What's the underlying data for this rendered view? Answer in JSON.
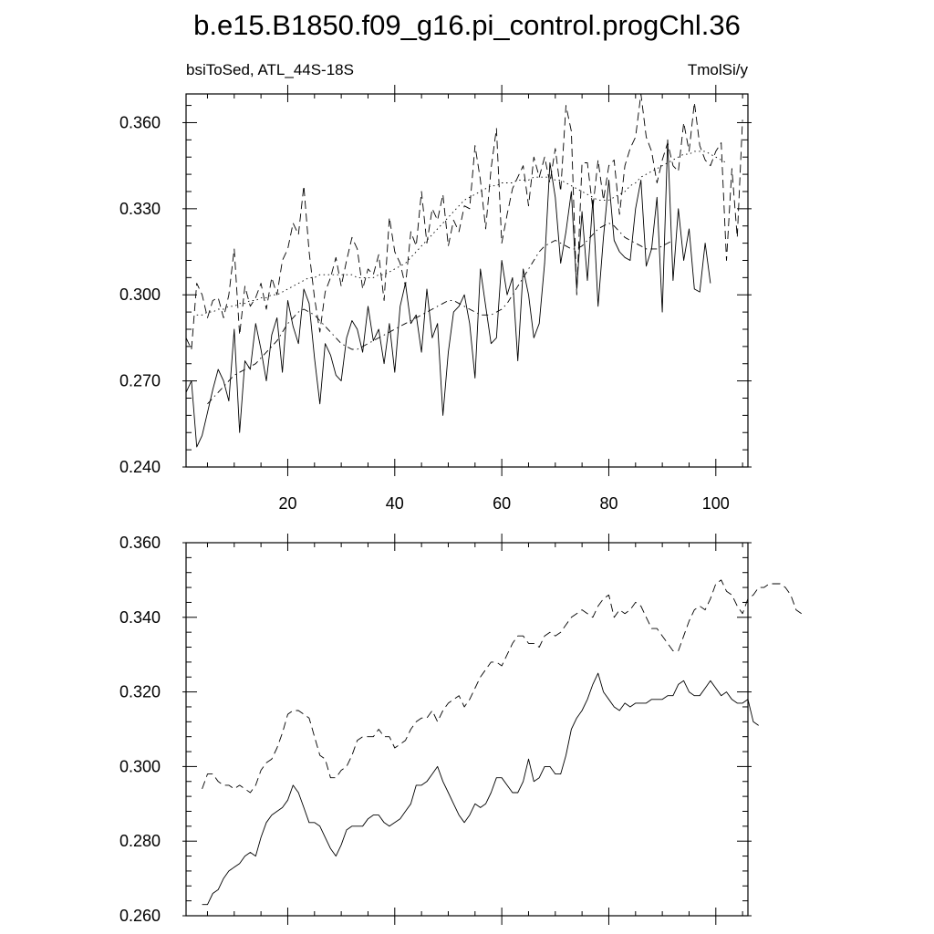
{
  "title": "b.e15.B1850.f09_g16.pi_control.progChl.36",
  "top_panel": {
    "left_label": "bsiToSed, ATL_44S-18S",
    "right_label": "TmolSi/y"
  },
  "chart_data": [
    {
      "type": "line",
      "title": "b.e15.B1850.f09_g16.pi_control.progChl.36",
      "left_label": "bsiToSed, ATL_44S-18S",
      "units": "TmolSi/y",
      "xlim": [
        1,
        106
      ],
      "ylim": [
        0.24,
        0.37
      ],
      "xticks": [
        20,
        40,
        60,
        80,
        100
      ],
      "xtick_labels": [
        "20",
        "40",
        "60",
        "80",
        "100"
      ],
      "yticks": [
        0.24,
        0.27,
        0.3,
        0.33,
        0.36
      ],
      "ytick_labels": [
        "0.240",
        "0.270",
        "0.300",
        "0.330",
        "0.360"
      ],
      "series": [
        {
          "dash": "solid",
          "x_start": 1,
          "values": [
            0.266,
            0.27,
            0.247,
            0.251,
            0.259,
            0.267,
            0.274,
            0.27,
            0.263,
            0.288,
            0.252,
            0.277,
            0.274,
            0.29,
            0.281,
            0.27,
            0.286,
            0.292,
            0.273,
            0.298,
            0.289,
            0.283,
            0.302,
            0.297,
            0.278,
            0.262,
            0.283,
            0.279,
            0.272,
            0.27,
            0.285,
            0.291,
            0.288,
            0.28,
            0.296,
            0.284,
            0.288,
            0.276,
            0.29,
            0.273,
            0.296,
            0.304,
            0.29,
            0.293,
            0.28,
            0.302,
            0.285,
            0.29,
            0.258,
            0.28,
            0.294,
            0.296,
            0.3,
            0.29,
            0.271,
            0.309,
            0.296,
            0.283,
            0.285,
            0.312,
            0.3,
            0.306,
            0.277,
            0.309,
            0.3,
            0.285,
            0.29,
            0.311,
            0.346,
            0.334,
            0.311,
            0.322,
            0.336,
            0.302,
            0.329,
            0.305,
            0.333,
            0.296,
            0.32,
            0.34,
            0.319,
            0.315,
            0.313,
            0.312,
            0.33,
            0.34,
            0.31,
            0.316,
            0.334,
            0.294,
            0.354,
            0.305,
            0.33,
            0.312,
            0.323,
            0.302,
            0.301,
            0.318,
            0.304
          ]
        },
        {
          "dash": "dashed",
          "x_start": 1,
          "values": [
            0.285,
            0.281,
            0.304,
            0.3,
            0.292,
            0.298,
            0.299,
            0.292,
            0.3,
            0.316,
            0.286,
            0.303,
            0.296,
            0.299,
            0.304,
            0.295,
            0.306,
            0.3,
            0.312,
            0.316,
            0.325,
            0.321,
            0.338,
            0.315,
            0.299,
            0.287,
            0.301,
            0.306,
            0.313,
            0.303,
            0.312,
            0.32,
            0.316,
            0.302,
            0.309,
            0.307,
            0.314,
            0.298,
            0.327,
            0.315,
            0.311,
            0.303,
            0.322,
            0.317,
            0.336,
            0.318,
            0.33,
            0.326,
            0.335,
            0.317,
            0.326,
            0.322,
            0.331,
            0.33,
            0.352,
            0.34,
            0.323,
            0.344,
            0.358,
            0.318,
            0.328,
            0.337,
            0.341,
            0.345,
            0.331,
            0.348,
            0.341,
            0.348,
            0.339,
            0.351,
            0.336,
            0.366,
            0.357,
            0.3,
            0.346,
            0.346,
            0.33,
            0.347,
            0.333,
            0.345,
            0.347,
            0.328,
            0.345,
            0.351,
            0.355,
            0.372,
            0.355,
            0.35,
            0.339,
            0.347,
            0.353,
            0.345,
            0.343,
            0.36,
            0.35,
            0.367,
            0.352,
            0.347,
            0.345,
            0.35,
            0.353,
            0.312,
            0.344,
            0.32,
            0.361
          ]
        },
        {
          "dash": "dashdot",
          "x_start": 5,
          "values": [
            0.262,
            0.264,
            0.266,
            0.268,
            0.27,
            0.272,
            0.273,
            0.274,
            0.275,
            0.276,
            0.278,
            0.28,
            0.282,
            0.284,
            0.287,
            0.29,
            0.292,
            0.294,
            0.295,
            0.294,
            0.293,
            0.291,
            0.289,
            0.287,
            0.285,
            0.283,
            0.282,
            0.281,
            0.281,
            0.282,
            0.283,
            0.284,
            0.285,
            0.286,
            0.287,
            0.288,
            0.289,
            0.29,
            0.291,
            0.292,
            0.293,
            0.294,
            0.295,
            0.296,
            0.297,
            0.298,
            0.298,
            0.297,
            0.296,
            0.295,
            0.294,
            0.293,
            0.293,
            0.293,
            0.294,
            0.295,
            0.297,
            0.3,
            0.303,
            0.306,
            0.309,
            0.312,
            0.315,
            0.317,
            0.318,
            0.319,
            0.318,
            0.317,
            0.316,
            0.316,
            0.317,
            0.319,
            0.321,
            0.323,
            0.324,
            0.325,
            0.324,
            0.322,
            0.32,
            0.319,
            0.318,
            0.317,
            0.316,
            0.316,
            0.316,
            0.317,
            0.318,
            0.319
          ]
        },
        {
          "dash": "dashdotdot",
          "x_start": 3,
          "values": [
            0.293,
            0.293,
            0.294,
            0.294,
            0.295,
            0.295,
            0.296,
            0.296,
            0.297,
            0.297,
            0.298,
            0.298,
            0.299,
            0.299,
            0.3,
            0.3,
            0.301,
            0.302,
            0.303,
            0.304,
            0.305,
            0.306,
            0.306,
            0.307,
            0.307,
            0.307,
            0.307,
            0.307,
            0.307,
            0.307,
            0.306,
            0.306,
            0.306,
            0.306,
            0.307,
            0.307,
            0.308,
            0.309,
            0.31,
            0.311,
            0.313,
            0.315,
            0.317,
            0.319,
            0.321,
            0.323,
            0.325,
            0.327,
            0.329,
            0.331,
            0.333,
            0.334,
            0.335,
            0.336,
            0.337,
            0.338,
            0.338,
            0.339,
            0.339,
            0.339,
            0.34,
            0.34,
            0.34,
            0.341,
            0.341,
            0.341,
            0.341,
            0.34,
            0.34,
            0.339,
            0.338,
            0.337,
            0.336,
            0.335,
            0.334,
            0.333,
            0.333,
            0.333,
            0.334,
            0.335,
            0.336,
            0.338,
            0.339,
            0.341,
            0.342,
            0.343,
            0.344,
            0.345,
            0.346,
            0.347,
            0.348,
            0.349,
            0.349,
            0.35,
            0.35,
            0.35,
            0.349,
            0.348,
            0.347,
            0.346
          ]
        }
      ]
    },
    {
      "type": "line",
      "xlim": [
        1,
        106
      ],
      "ylim": [
        0.26,
        0.36
      ],
      "xticks": [
        20,
        40,
        60,
        80,
        100
      ],
      "yticks": [
        0.26,
        0.28,
        0.3,
        0.32,
        0.34,
        0.36
      ],
      "ytick_labels": [
        "0.260",
        "0.280",
        "0.300",
        "0.320",
        "0.340",
        "0.360"
      ],
      "series": [
        {
          "dash": "solid",
          "x_start": 4,
          "values": [
            0.263,
            0.263,
            0.266,
            0.267,
            0.27,
            0.272,
            0.273,
            0.274,
            0.276,
            0.277,
            0.276,
            0.281,
            0.285,
            0.287,
            0.288,
            0.289,
            0.291,
            0.295,
            0.293,
            0.289,
            0.285,
            0.285,
            0.284,
            0.281,
            0.278,
            0.276,
            0.279,
            0.283,
            0.284,
            0.284,
            0.284,
            0.286,
            0.287,
            0.287,
            0.285,
            0.284,
            0.285,
            0.286,
            0.288,
            0.29,
            0.295,
            0.295,
            0.296,
            0.298,
            0.3,
            0.296,
            0.293,
            0.29,
            0.287,
            0.285,
            0.287,
            0.29,
            0.289,
            0.29,
            0.293,
            0.297,
            0.297,
            0.295,
            0.293,
            0.293,
            0.296,
            0.302,
            0.296,
            0.297,
            0.3,
            0.3,
            0.298,
            0.298,
            0.303,
            0.31,
            0.313,
            0.315,
            0.318,
            0.322,
            0.325,
            0.32,
            0.318,
            0.316,
            0.315,
            0.317,
            0.316,
            0.317,
            0.317,
            0.317,
            0.318,
            0.318,
            0.318,
            0.319,
            0.319,
            0.322,
            0.323,
            0.32,
            0.319,
            0.319,
            0.321,
            0.323,
            0.321,
            0.319,
            0.32,
            0.318,
            0.317,
            0.317,
            0.318,
            0.312,
            0.311
          ]
        },
        {
          "dash": "dashed",
          "x_start": 4,
          "values": [
            0.294,
            0.298,
            0.298,
            0.296,
            0.295,
            0.295,
            0.294,
            0.295,
            0.294,
            0.293,
            0.295,
            0.299,
            0.301,
            0.302,
            0.305,
            0.309,
            0.314,
            0.315,
            0.315,
            0.314,
            0.313,
            0.308,
            0.303,
            0.302,
            0.297,
            0.297,
            0.299,
            0.3,
            0.303,
            0.307,
            0.308,
            0.308,
            0.308,
            0.31,
            0.308,
            0.308,
            0.305,
            0.306,
            0.307,
            0.31,
            0.312,
            0.313,
            0.313,
            0.315,
            0.312,
            0.315,
            0.317,
            0.318,
            0.319,
            0.316,
            0.318,
            0.321,
            0.324,
            0.326,
            0.328,
            0.328,
            0.327,
            0.33,
            0.333,
            0.335,
            0.335,
            0.333,
            0.333,
            0.332,
            0.335,
            0.336,
            0.335,
            0.336,
            0.338,
            0.34,
            0.341,
            0.342,
            0.341,
            0.34,
            0.343,
            0.345,
            0.346,
            0.34,
            0.342,
            0.341,
            0.342,
            0.344,
            0.343,
            0.34,
            0.337,
            0.337,
            0.335,
            0.333,
            0.331,
            0.331,
            0.335,
            0.339,
            0.342,
            0.343,
            0.342,
            0.345,
            0.349,
            0.35,
            0.347,
            0.346,
            0.343,
            0.341,
            0.345,
            0.346,
            0.348,
            0.348,
            0.349,
            0.349,
            0.349,
            0.348,
            0.346,
            0.342,
            0.341
          ]
        }
      ]
    }
  ]
}
